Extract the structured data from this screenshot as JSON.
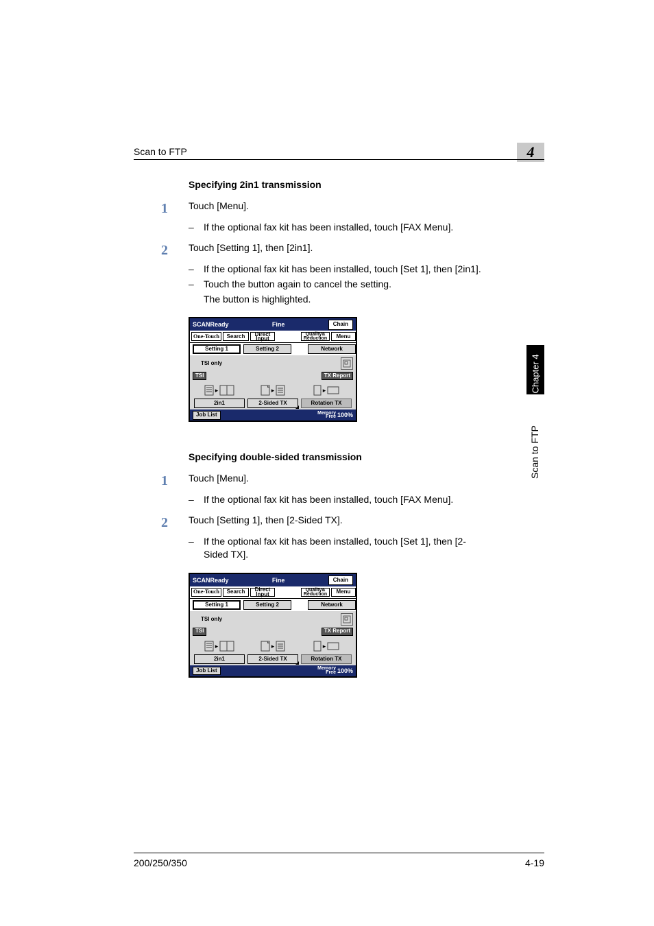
{
  "header": {
    "section": "Scan to FTP",
    "chapter_num": "4"
  },
  "side": {
    "tab": "Chapter 4",
    "text": "Scan to FTP"
  },
  "sections": [
    {
      "heading": "Specifying 2in1 transmission",
      "steps": [
        {
          "num": "1",
          "text": "Touch [Menu].",
          "subs": [
            "If the optional fax kit has been installed, touch [FAX Menu]."
          ],
          "after": []
        },
        {
          "num": "2",
          "text": "Touch [Setting 1], then [2in1].",
          "subs": [
            "If the optional fax kit has been installed, touch [Set 1], then [2in1].",
            "Touch the button again to cancel the setting."
          ],
          "after": [
            "The button is highlighted."
          ]
        }
      ]
    },
    {
      "heading": "Specifying double-sided transmission",
      "steps": [
        {
          "num": "1",
          "text": "Touch [Menu].",
          "subs": [
            "If the optional fax kit has been installed, touch [FAX Menu]."
          ],
          "after": []
        },
        {
          "num": "2",
          "text": "Touch [Setting 1], then [2-Sided TX].",
          "subs": [
            "If the optional fax kit has been installed, touch [Set 1], then [2-Sided TX]."
          ],
          "after": []
        }
      ]
    }
  ],
  "lcd": {
    "scan_ready": "SCANReady",
    "fine": "Fine",
    "chain": "Chain",
    "one_touch": "One-Touch",
    "search": "Search",
    "direct_input_l1": "Direct",
    "direct_input_l2": "Input",
    "quality_l1": "Quality&",
    "quality_l2": "Reduction",
    "menu": "Menu",
    "setting1": "Setting 1",
    "setting2": "Setting 2",
    "network": "Network",
    "tsi_only": "TSI only",
    "tsi": "TSI",
    "tx_report": "TX Report",
    "two_in_one": "2in1",
    "two_sided": "2-Sided TX",
    "rotation": "Rotation TX",
    "job_list": "Job List",
    "memory_l1": "Memory",
    "memory_l2": "Free",
    "pct": "100%",
    "colors": {
      "banner": "#1a2a6b",
      "body_bg": "#d8d8d8",
      "gray_btn": "#bbbbbb",
      "inv_btn": "#555555"
    }
  },
  "footer": {
    "left": "200/250/350",
    "right": "4-19"
  }
}
